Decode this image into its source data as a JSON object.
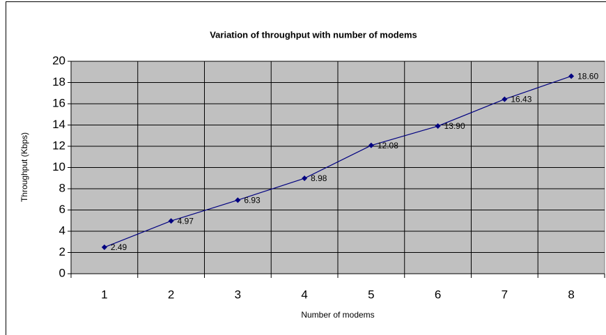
{
  "chart_data": {
    "type": "line",
    "title": "Variation of throughput with number of modems",
    "x_label": "Number of modems",
    "y_label": "Throughput (Kbps)",
    "categories": [
      "1",
      "2",
      "3",
      "4",
      "5",
      "6",
      "7",
      "8"
    ],
    "values": [
      2.49,
      4.97,
      6.93,
      8.98,
      12.08,
      13.9,
      16.43,
      18.6
    ],
    "value_labels": [
      "2.49",
      "4.97",
      "6.93",
      "8.98",
      "12.08",
      "13.90",
      "16.43",
      "18.60"
    ],
    "color": "#000080",
    "ylim": [
      0,
      20
    ],
    "yticks": [
      0,
      2,
      4,
      6,
      8,
      10,
      12,
      14,
      16,
      18,
      20
    ],
    "grid": true,
    "plot_background": "#c0c0c0"
  }
}
